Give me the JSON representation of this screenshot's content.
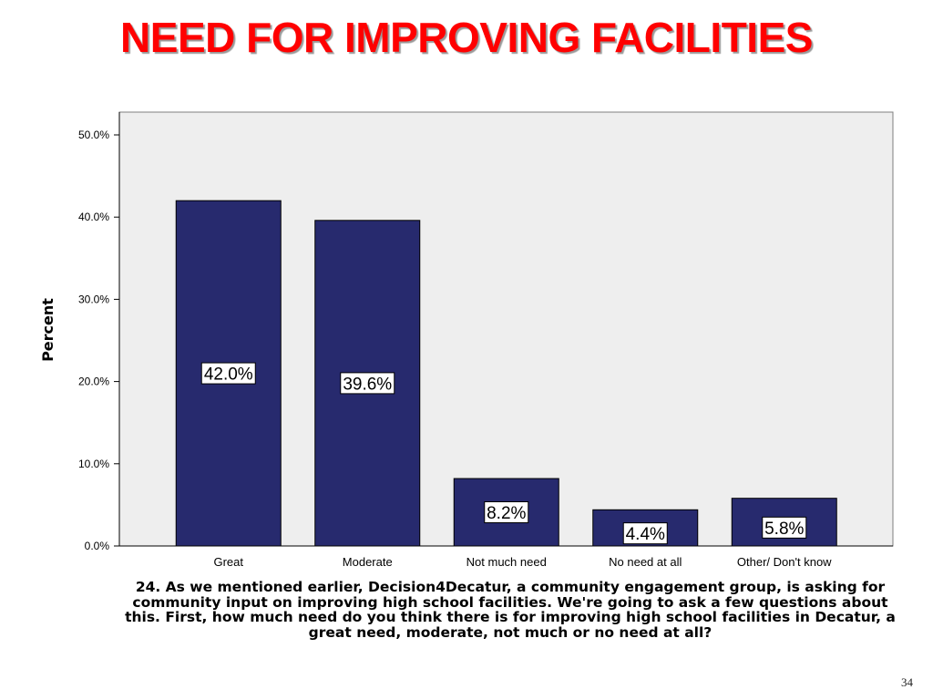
{
  "slide": {
    "title": "NEED FOR IMPROVING FACILITIES",
    "page_number": "34",
    "title_color": "#ff0000"
  },
  "colors": {
    "bar_fill": "#272a6e",
    "plot_background": "#eeeeee"
  },
  "chart_data": {
    "type": "bar",
    "title": "",
    "xlabel": "24. As we mentioned earlier, Decision4Decatur, a community engagement group, is asking for community input on improving high school facilities. We're going to ask a few questions about this. First, how much need do you think there is for improving high school facilities in Decatur, a great need, moderate, not much or no need at all?",
    "ylabel": "Percent",
    "categories": [
      "Great",
      "Moderate",
      "Not much need",
      "No need at all",
      "Other/ Don't know"
    ],
    "values": [
      42.0,
      39.6,
      8.2,
      4.4,
      5.8
    ],
    "data_labels": [
      "42.0%",
      "39.6%",
      "8.2%",
      "4.4%",
      "5.8%"
    ],
    "ylim": [
      0,
      50
    ],
    "yticks": [
      0,
      10,
      20,
      30,
      40,
      50
    ],
    "ytick_labels": [
      "0.0%",
      "10.0%",
      "20.0%",
      "30.0%",
      "40.0%",
      "50.0%"
    ],
    "grid": false,
    "legend": "none"
  }
}
